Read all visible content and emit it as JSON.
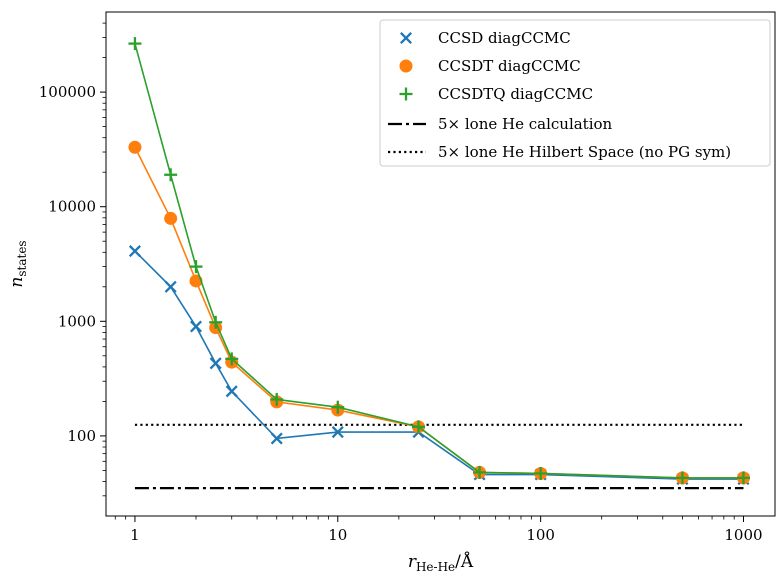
{
  "chart_data": {
    "type": "line",
    "xlabel_main": "r",
    "xlabel_sub": "He-He",
    "xlabel_unit": "/Å",
    "ylabel_main": "n",
    "ylabel_sub": "states",
    "xscale": "log",
    "yscale": "log",
    "xlim": [
      0.72,
      1430
    ],
    "ylim": [
      20,
      500000
    ],
    "xticks": [
      1,
      10,
      100,
      1000
    ],
    "xtick_labels": [
      "1",
      "10",
      "100",
      "1000"
    ],
    "yticks": [
      100,
      1000,
      10000,
      100000
    ],
    "ytick_labels": [
      "100",
      "1000",
      "10000",
      "100000"
    ],
    "grid": false,
    "legend_position": "top-right",
    "series": [
      {
        "name": "CCSD diagCCMC",
        "color": "#1f77b4",
        "marker": "x",
        "x": [
          1,
          1.5,
          2,
          2.5,
          3,
          5,
          10,
          25,
          50,
          100,
          500,
          1000
        ],
        "y": [
          4100,
          2000,
          900,
          430,
          245,
          95,
          108,
          108,
          46,
          46,
          42,
          42
        ]
      },
      {
        "name": "CCSDT diagCCMC",
        "color": "#ff7f0e",
        "marker": "o",
        "x": [
          1,
          1.5,
          2,
          2.5,
          3,
          5,
          10,
          25,
          50,
          100,
          500,
          1000
        ],
        "y": [
          33000,
          7900,
          2250,
          880,
          440,
          198,
          168,
          120,
          48,
          47,
          43,
          43
        ]
      },
      {
        "name": "CCSDTQ diagCCMC",
        "color": "#2ca02c",
        "marker": "+",
        "x": [
          1,
          1.5,
          2,
          2.5,
          3,
          5,
          10,
          25,
          50,
          100,
          500,
          1000
        ],
        "y": [
          265000,
          19000,
          3000,
          980,
          470,
          208,
          178,
          120,
          48,
          47,
          43,
          43
        ]
      }
    ],
    "reference_lines": [
      {
        "name": "5× lone He calculation",
        "y": 35,
        "style": "dashdot",
        "color": "#000000",
        "x_range": [
          1,
          1000
        ]
      },
      {
        "name": "5× lone He Hilbert Space (no PG sym)",
        "y": 125,
        "style": "dotted",
        "color": "#000000",
        "x_range": [
          1,
          1000
        ]
      }
    ]
  }
}
